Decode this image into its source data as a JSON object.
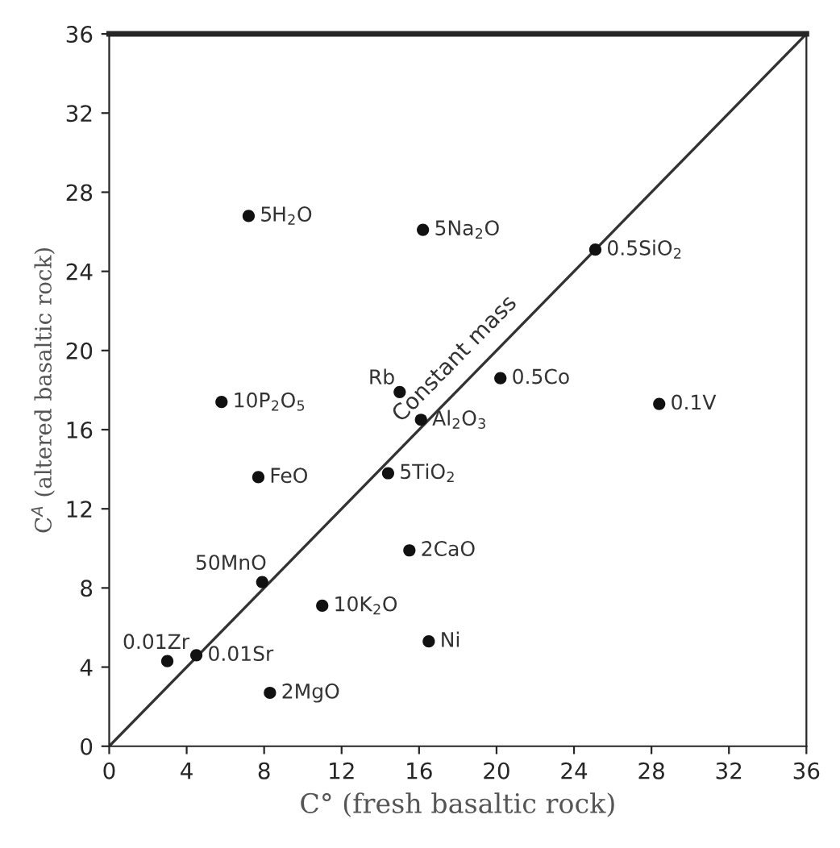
{
  "chart_data": {
    "type": "scatter",
    "xlabel": "C° (fresh basaltic rock)",
    "ylabel": "C$^{A}$ (altered basaltic rock)",
    "xlim": [
      0,
      36
    ],
    "ylim": [
      0,
      36
    ],
    "xticks": [
      0,
      4,
      8,
      12,
      16,
      20,
      24,
      28,
      32,
      36
    ],
    "yticks": [
      0,
      4,
      8,
      12,
      16,
      20,
      24,
      28,
      32,
      36
    ],
    "grid": false,
    "legend": false,
    "series": [
      {
        "marker": "circle",
        "color": "#111111",
        "x": [
          7.2,
          16.2,
          25.1,
          15.0,
          20.2,
          28.4,
          5.8,
          16.1,
          7.7,
          14.4,
          15.5,
          7.9,
          11.0,
          16.5,
          3.0,
          4.5,
          8.3
        ],
        "values": [
          26.8,
          26.1,
          25.1,
          17.9,
          18.6,
          17.3,
          17.4,
          16.5,
          13.6,
          13.8,
          9.9,
          8.3,
          7.1,
          5.3,
          4.3,
          4.6,
          2.7
        ]
      },
      {
        "type": "line",
        "name": "Constant mass",
        "color": "#333333",
        "line_style": "solid",
        "x": [
          0,
          36
        ],
        "values": [
          0,
          36
        ]
      }
    ],
    "annotations": [
      {
        "text": "5H$_{2}$O",
        "x": 7.2,
        "y": 26.8
      },
      {
        "text": "5Na$_{2}$O",
        "x": 16.2,
        "y": 26.1
      },
      {
        "text": "0.5SiO$_{2}$",
        "x": 25.1,
        "y": 25.1
      },
      {
        "text": "Rb",
        "x": 15.0,
        "y": 17.9
      },
      {
        "text": "0.5Co",
        "x": 20.2,
        "y": 18.6
      },
      {
        "text": "0.1V",
        "x": 28.4,
        "y": 17.3
      },
      {
        "text": "10P$_{2}$O$_{5}$",
        "x": 5.8,
        "y": 17.4
      },
      {
        "text": "Al$_{2}$O$_{3}$",
        "x": 16.1,
        "y": 16.5
      },
      {
        "text": "FeO",
        "x": 7.7,
        "y": 13.6
      },
      {
        "text": "5TiO$_{2}$",
        "x": 14.4,
        "y": 13.8
      },
      {
        "text": "2CaO",
        "x": 15.5,
        "y": 9.9
      },
      {
        "text": "50MnO",
        "x": 7.9,
        "y": 8.3
      },
      {
        "text": "10K$_{2}$O",
        "x": 11.0,
        "y": 7.1
      },
      {
        "text": "Ni",
        "x": 16.5,
        "y": 5.3
      },
      {
        "text": "0.01Zr",
        "x": 3.0,
        "y": 4.3
      },
      {
        "text": "0.01Sr",
        "x": 4.5,
        "y": 4.6
      },
      {
        "text": "2MgO",
        "x": 8.3,
        "y": 2.7
      }
    ]
  }
}
